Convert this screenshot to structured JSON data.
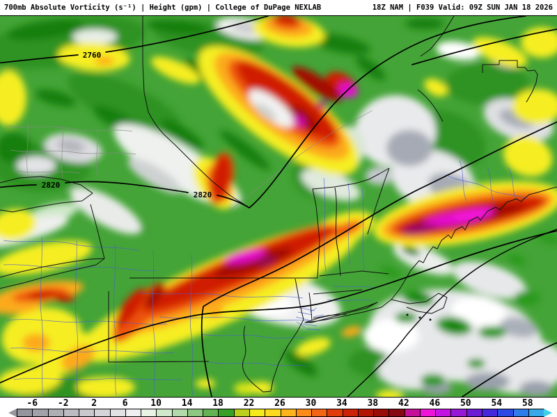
{
  "header": {
    "left_title": "700mb Absolute Vorticity (s⁻¹) | Height (gpm) | College of DuPage NEXLAB",
    "right_title": "18Z NAM | F039 Valid: 09Z SUN JAN 18 2026"
  },
  "map": {
    "contour_labels": [
      {
        "text": "2760"
      },
      {
        "text": "2820"
      },
      {
        "text": "2820"
      }
    ]
  },
  "colorbar": {
    "min": -8,
    "max": 60,
    "step": 2,
    "tick_labels": [
      -6,
      -2,
      2,
      6,
      10,
      14,
      18,
      22,
      26,
      30,
      34,
      38,
      42,
      46,
      50,
      54,
      58
    ],
    "segment_colors": [
      "#95959d",
      "#a1a1a9",
      "#aeaeb5",
      "#bbbbc1",
      "#c8c8cd",
      "#d5d5d9",
      "#e2e2e5",
      "#efeff1",
      "#e8f3e4",
      "#d0e8ca",
      "#b1d9a9",
      "#8dc782",
      "#63b355",
      "#38a027",
      "#bad01d",
      "#f5eb1c",
      "#fdda1e",
      "#fdb41c",
      "#fb8c1a",
      "#f36413",
      "#e13b0b",
      "#cc2106",
      "#b21406",
      "#9a0c07",
      "#870713",
      "#c60f99",
      "#ef13da",
      "#c414e4",
      "#9717d8",
      "#6d1ad4",
      "#4527dd",
      "#2b4ae4",
      "#2f7de8",
      "#37a9e8"
    ],
    "left_arrow_color": "#95959d",
    "right_arrow_color": "#3fd0e8"
  },
  "chart_data": {
    "type": "heatmap",
    "title": "700mb Absolute Vorticity (s⁻¹) | Height (gpm)",
    "source": "College of DuPage NEXLAB",
    "model_run": "18Z NAM",
    "forecast_hour": "F039",
    "valid_time": "09Z SUN JAN 18 2026",
    "colorbar_scale": [
      -6,
      -2,
      2,
      6,
      10,
      14,
      18,
      22,
      26,
      30,
      34,
      38,
      42,
      46,
      50,
      54,
      58
    ],
    "height_contour_labels_gpm": [
      2760,
      2820,
      2820
    ],
    "notes": "Vorticity maxima (magenta, >42) over central NY/PA border, coastal Maine, and an occluded ring feature over the St. Lawrence valley; negative vorticity (gray) SE of the main band offshore."
  }
}
